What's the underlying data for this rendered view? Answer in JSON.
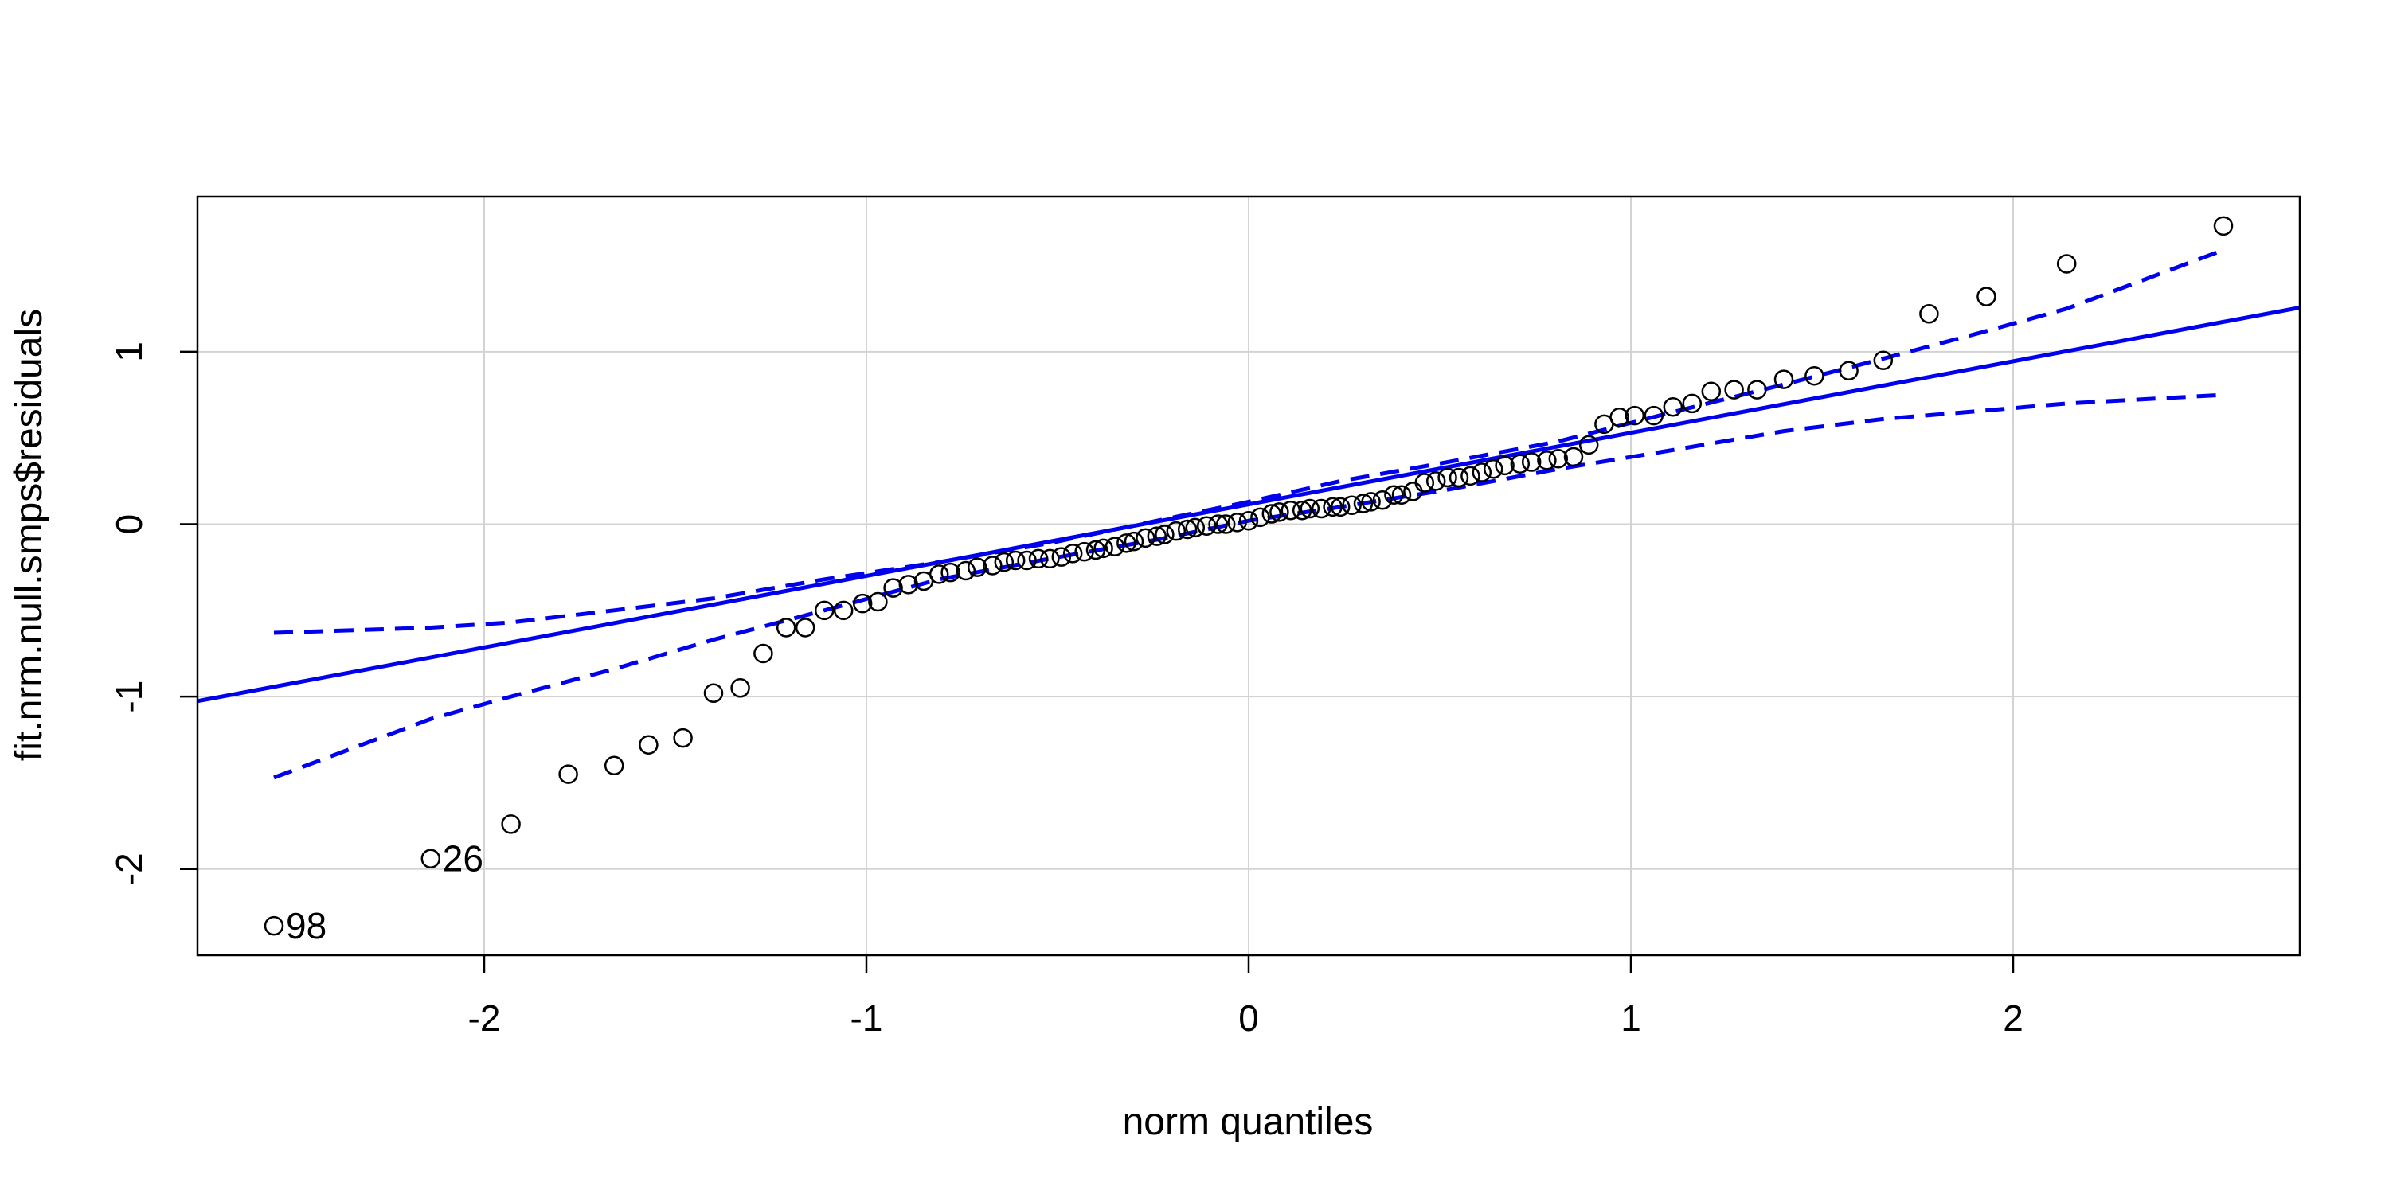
{
  "chart_data": {
    "type": "scatter",
    "xlabel": "norm quantiles",
    "ylabel": "fit.nrm.null.smps$residuals",
    "xlim": [
      -2.75,
      2.75
    ],
    "ylim": [
      -2.5,
      1.9
    ],
    "grid": true,
    "x_ticks": [
      -2,
      -1,
      0,
      1,
      2
    ],
    "x_tick_labels": [
      "-2",
      "-1",
      "0",
      "1",
      "2"
    ],
    "y_ticks": [
      -2,
      -1,
      0,
      1
    ],
    "y_tick_labels": [
      "-2",
      "-1",
      "0",
      "1"
    ],
    "colors": {
      "reference": "#0000ee",
      "points": "#000000",
      "grid": "#d3d3d3"
    },
    "points": [
      [
        -2.55,
        -2.33
      ],
      [
        -2.14,
        -1.94
      ],
      [
        -1.93,
        -1.74
      ],
      [
        -1.78,
        -1.45
      ],
      [
        -1.66,
        -1.4
      ],
      [
        -1.57,
        -1.28
      ],
      [
        -1.48,
        -1.24
      ],
      [
        -1.4,
        -0.98
      ],
      [
        -1.33,
        -0.95
      ],
      [
        -1.27,
        -0.75
      ],
      [
        -1.21,
        -0.6
      ],
      [
        -1.16,
        -0.6
      ],
      [
        -1.11,
        -0.5
      ],
      [
        -1.06,
        -0.5
      ],
      [
        -1.01,
        -0.46
      ],
      [
        -0.97,
        -0.45
      ],
      [
        -0.93,
        -0.37
      ],
      [
        -0.89,
        -0.35
      ],
      [
        -0.85,
        -0.33
      ],
      [
        -0.81,
        -0.29
      ],
      [
        -0.78,
        -0.28
      ],
      [
        -0.74,
        -0.27
      ],
      [
        -0.71,
        -0.25
      ],
      [
        -0.67,
        -0.24
      ],
      [
        -0.64,
        -0.22
      ],
      [
        -0.61,
        -0.21
      ],
      [
        -0.58,
        -0.21
      ],
      [
        -0.55,
        -0.2
      ],
      [
        -0.52,
        -0.2
      ],
      [
        -0.49,
        -0.19
      ],
      [
        -0.46,
        -0.17
      ],
      [
        -0.43,
        -0.16
      ],
      [
        -0.4,
        -0.15
      ],
      [
        -0.38,
        -0.14
      ],
      [
        -0.35,
        -0.13
      ],
      [
        -0.32,
        -0.11
      ],
      [
        -0.3,
        -0.1
      ],
      [
        -0.27,
        -0.08
      ],
      [
        -0.24,
        -0.07
      ],
      [
        -0.22,
        -0.06
      ],
      [
        -0.19,
        -0.04
      ],
      [
        -0.16,
        -0.03
      ],
      [
        -0.14,
        -0.02
      ],
      [
        -0.11,
        -0.01
      ],
      [
        -0.08,
        0.0
      ],
      [
        -0.06,
        0.0
      ],
      [
        -0.03,
        0.01
      ],
      [
        0.0,
        0.02
      ],
      [
        0.03,
        0.04
      ],
      [
        0.06,
        0.06
      ],
      [
        0.08,
        0.07
      ],
      [
        0.11,
        0.08
      ],
      [
        0.14,
        0.08
      ],
      [
        0.16,
        0.09
      ],
      [
        0.19,
        0.09
      ],
      [
        0.22,
        0.1
      ],
      [
        0.24,
        0.1
      ],
      [
        0.27,
        0.11
      ],
      [
        0.3,
        0.12
      ],
      [
        0.32,
        0.13
      ],
      [
        0.35,
        0.14
      ],
      [
        0.38,
        0.17
      ],
      [
        0.4,
        0.17
      ],
      [
        0.43,
        0.19
      ],
      [
        0.46,
        0.24
      ],
      [
        0.49,
        0.25
      ],
      [
        0.52,
        0.27
      ],
      [
        0.55,
        0.27
      ],
      [
        0.58,
        0.28
      ],
      [
        0.61,
        0.3
      ],
      [
        0.64,
        0.32
      ],
      [
        0.67,
        0.34
      ],
      [
        0.71,
        0.35
      ],
      [
        0.74,
        0.36
      ],
      [
        0.78,
        0.37
      ],
      [
        0.81,
        0.38
      ],
      [
        0.85,
        0.39
      ],
      [
        0.89,
        0.46
      ],
      [
        0.93,
        0.58
      ],
      [
        0.97,
        0.62
      ],
      [
        1.01,
        0.63
      ],
      [
        1.06,
        0.63
      ],
      [
        1.11,
        0.68
      ],
      [
        1.16,
        0.7
      ],
      [
        1.21,
        0.77
      ],
      [
        1.27,
        0.78
      ],
      [
        1.33,
        0.78
      ],
      [
        1.4,
        0.84
      ],
      [
        1.48,
        0.86
      ],
      [
        1.57,
        0.89
      ],
      [
        1.66,
        0.95
      ],
      [
        1.78,
        1.22
      ],
      [
        1.93,
        1.32
      ],
      [
        2.14,
        1.51
      ],
      [
        2.55,
        1.73
      ]
    ],
    "reference_line": {
      "intercept": 0.115,
      "slope": 0.415
    },
    "confidence_band": {
      "x": [
        -2.55,
        -2.14,
        -1.93,
        -1.66,
        -1.4,
        -1.11,
        -0.81,
        -0.52,
        -0.24,
        0.0,
        0.24,
        0.52,
        0.81,
        1.11,
        1.4,
        1.66,
        1.93,
        2.14,
        2.55
      ],
      "upper": [
        -0.63,
        -0.6,
        -0.57,
        -0.5,
        -0.43,
        -0.32,
        -0.22,
        -0.11,
        0.02,
        0.13,
        0.25,
        0.36,
        0.48,
        0.65,
        0.81,
        0.96,
        1.12,
        1.25,
        1.59
      ],
      "lower": [
        -1.47,
        -1.13,
        -1.0,
        -0.84,
        -0.67,
        -0.5,
        -0.32,
        -0.2,
        -0.09,
        0.02,
        0.1,
        0.2,
        0.32,
        0.43,
        0.54,
        0.61,
        0.66,
        0.7,
        0.75
      ]
    },
    "annotations": [
      {
        "text": "98",
        "x": -2.55,
        "y": -2.33
      },
      {
        "text": "26",
        "x": -2.14,
        "y": -1.94
      }
    ]
  }
}
